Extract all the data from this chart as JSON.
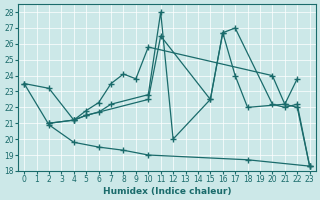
{
  "xlabel": "Humidex (Indice chaleur)",
  "xlim": [
    -0.5,
    23.5
  ],
  "ylim": [
    18,
    28.5
  ],
  "xticks": [
    0,
    1,
    2,
    3,
    4,
    5,
    6,
    7,
    8,
    9,
    10,
    11,
    12,
    13,
    14,
    15,
    16,
    17,
    18,
    19,
    20,
    21,
    22,
    23
  ],
  "yticks": [
    18,
    19,
    20,
    21,
    22,
    23,
    24,
    25,
    26,
    27,
    28
  ],
  "bg_color": "#cce8e8",
  "line_color": "#1a6b6b",
  "line1_x": [
    0,
    2,
    4,
    6,
    8,
    10,
    18,
    23
  ],
  "line1_y": [
    23.5,
    20.9,
    19.8,
    19.5,
    19.3,
    19.0,
    18.7,
    18.3
  ],
  "line2_x": [
    0,
    2,
    4,
    5,
    6,
    7,
    8,
    9,
    10,
    20,
    21,
    22
  ],
  "line2_y": [
    23.5,
    23.2,
    21.2,
    21.8,
    22.3,
    23.5,
    24.1,
    23.8,
    25.8,
    24.0,
    22.2,
    23.8
  ],
  "line3_x": [
    2,
    4,
    5,
    6,
    7,
    10,
    11,
    12,
    15,
    16,
    17,
    20,
    21,
    22,
    23
  ],
  "line3_y": [
    21.0,
    21.2,
    21.5,
    21.7,
    22.2,
    22.8,
    28.0,
    20.0,
    22.5,
    26.7,
    27.0,
    22.2,
    22.0,
    22.2,
    18.3
  ],
  "line4_x": [
    2,
    4,
    5,
    10,
    11,
    15,
    16,
    17,
    18,
    21,
    22,
    23
  ],
  "line4_y": [
    21.0,
    21.2,
    21.5,
    22.5,
    26.5,
    22.5,
    26.7,
    24.0,
    22.0,
    22.2,
    22.0,
    18.3
  ]
}
